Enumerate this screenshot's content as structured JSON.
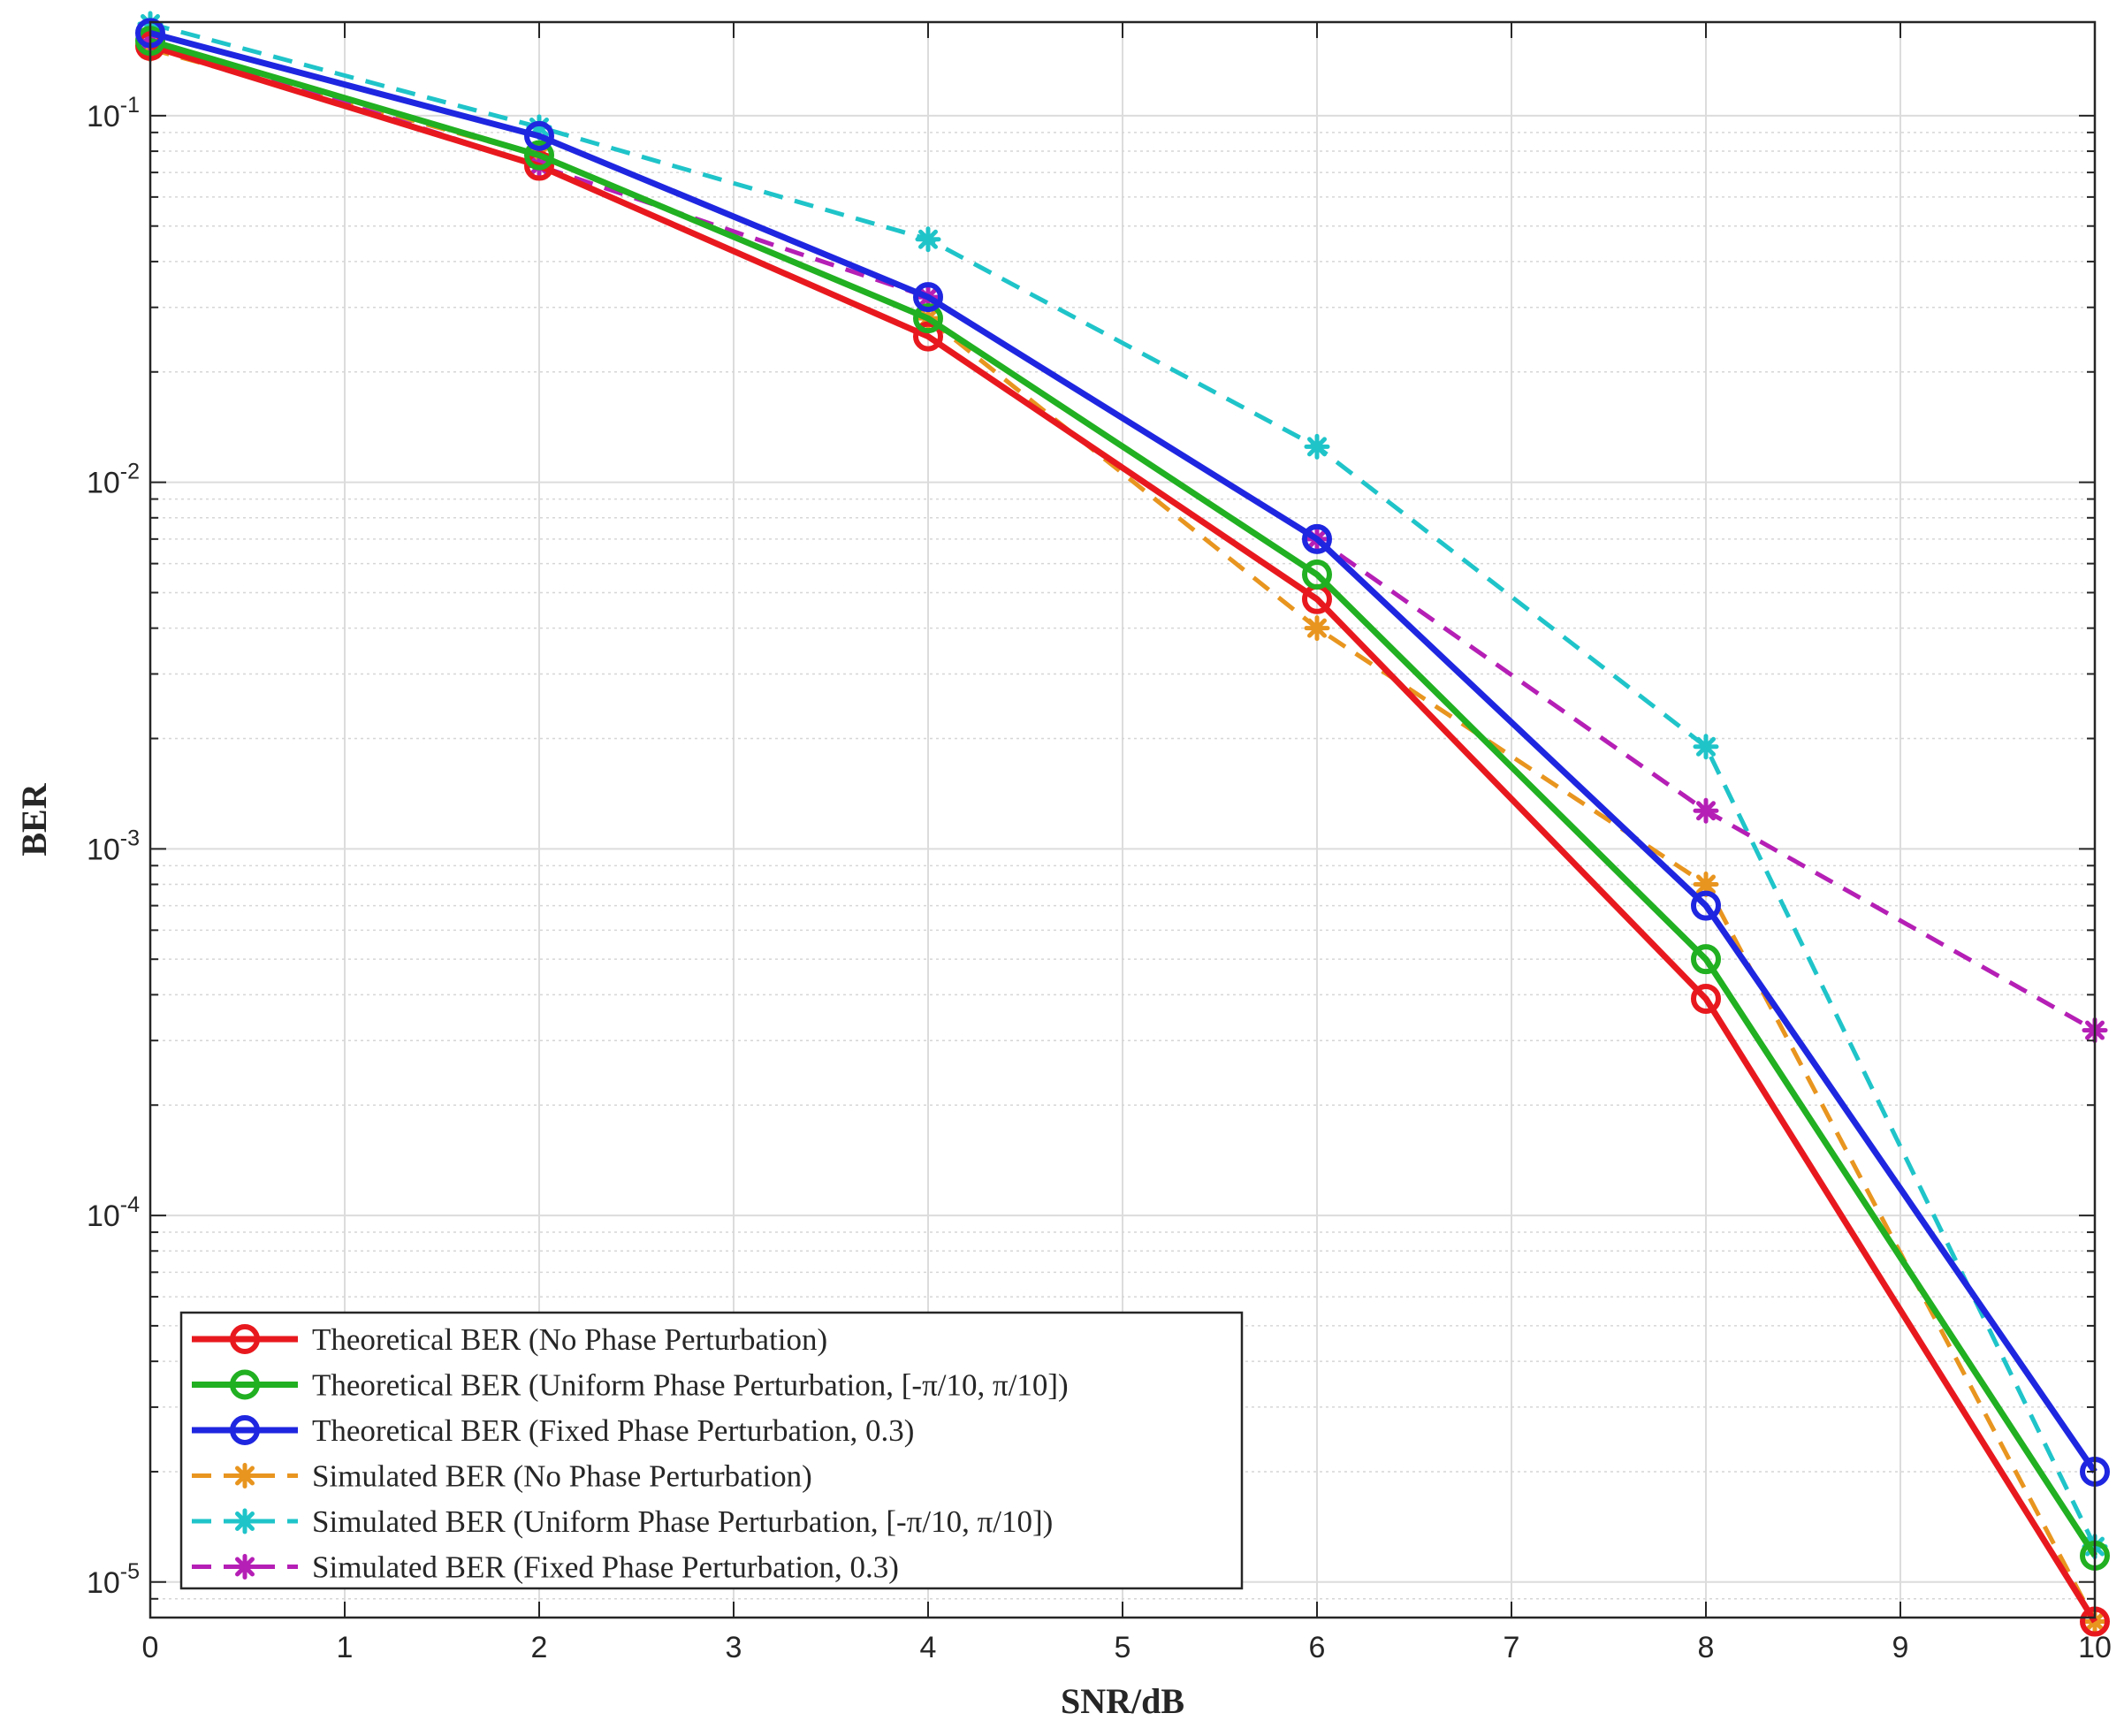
{
  "chart_data": {
    "type": "line",
    "title": "",
    "xlabel": "SNR/dB",
    "ylabel": "BER",
    "xlim": [
      0,
      10
    ],
    "ylim": [
      8e-06,
      0.18
    ],
    "yscale": "log",
    "grid": true,
    "legend_position": "bottom-left",
    "x_ticks": [
      0,
      1,
      2,
      3,
      4,
      5,
      6,
      7,
      8,
      9,
      10
    ],
    "y_ticks": [
      {
        "value": 0.1,
        "base": "10",
        "exp": "-1"
      },
      {
        "value": 0.01,
        "base": "10",
        "exp": "-2"
      },
      {
        "value": 0.001,
        "base": "10",
        "exp": "-3"
      },
      {
        "value": 0.0001,
        "base": "10",
        "exp": "-4"
      },
      {
        "value": 1e-05,
        "base": "10",
        "exp": "-5"
      }
    ],
    "series": [
      {
        "name": "Theoretical BER (No Phase Perturbation)",
        "color": "#e8191e",
        "style": "solid",
        "marker": "circle",
        "x": [
          0,
          2,
          4,
          6,
          8,
          10
        ],
        "values": [
          0.155,
          0.073,
          0.025,
          0.0048,
          0.00039,
          7.8e-06
        ]
      },
      {
        "name": "Theoretical BER (Uniform Phase Perturbation, [-π/10, π/10])",
        "color": "#21b021",
        "style": "solid",
        "marker": "circle",
        "x": [
          0,
          2,
          4,
          6,
          8,
          10
        ],
        "values": [
          0.16,
          0.078,
          0.028,
          0.0056,
          0.0005,
          1.18e-05
        ]
      },
      {
        "name": "Theoretical BER (Fixed Phase Perturbation, 0.3)",
        "color": "#1f26e0",
        "style": "solid",
        "marker": "circle",
        "x": [
          0,
          2,
          4,
          6,
          8,
          10
        ],
        "values": [
          0.168,
          0.088,
          0.032,
          0.007,
          0.0007,
          2e-05
        ]
      },
      {
        "name": "Simulated BER (No Phase Perturbation)",
        "color": "#e8951f",
        "style": "dashed",
        "marker": "asterisk",
        "x": [
          0,
          2,
          4,
          6,
          8,
          10
        ],
        "values": [
          0.152,
          0.078,
          0.028,
          0.004,
          0.0008,
          7.8e-06
        ]
      },
      {
        "name": "Simulated BER (Uniform Phase Perturbation, [-π/10, π/10])",
        "color": "#1fc4c9",
        "style": "dashed",
        "marker": "asterisk",
        "x": [
          0,
          2,
          4,
          6,
          8,
          10
        ],
        "values": [
          0.178,
          0.093,
          0.046,
          0.0125,
          0.0019,
          1.25e-05
        ]
      },
      {
        "name": "Simulated BER (Fixed Phase Perturbation, 0.3)",
        "color": "#b51fb5",
        "style": "dashed",
        "marker": "asterisk",
        "x": [
          0,
          2,
          4,
          6,
          8,
          10
        ],
        "values": [
          0.16,
          0.073,
          0.032,
          0.007,
          0.00127,
          0.00032
        ]
      }
    ]
  }
}
